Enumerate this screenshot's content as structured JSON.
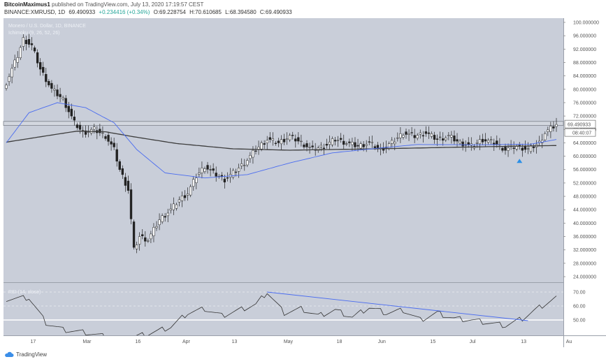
{
  "header": {
    "author": "BitcoinMaximus1",
    "published_text": "published on TradingView.com, July 13, 2020 17:19:57 CEST",
    "symbol": "BINANCE:XMRUSD, 1D",
    "last": "69.490933",
    "change": "+0.234416 (+0.34%)",
    "o": "O:69.228754",
    "h": "H:70.610685",
    "l": "L:68.394580",
    "c": "C:69.490933"
  },
  "chart_data": {
    "type": "candlestick",
    "title": "Monero / U.S. Dollar, 1D, BINANCE",
    "indicator_label": "Ichimoku (9, 26, 52, 26)",
    "price_axis_ticks": [
      "100.000000",
      "96.000000",
      "92.000000",
      "88.000000",
      "84.000000",
      "80.000000",
      "76.000000",
      "72.000000",
      "68.000000",
      "64.000000",
      "60.000000",
      "56.000000",
      "52.000000",
      "48.000000",
      "44.000000",
      "40.000000",
      "36.000000",
      "32.000000",
      "28.000000",
      "24.000000"
    ],
    "ylim": [
      24,
      100
    ],
    "last_price_label": "69.490933",
    "countdown_label": "08:40:07",
    "resistance_level": 69.8,
    "time_axis_labels": [
      "17",
      "Mar",
      "16",
      "Apr",
      "13",
      "May",
      "18",
      "Jun",
      "15",
      "Jul",
      "13",
      "Au"
    ],
    "close_anchors": [
      {
        "i": 0,
        "v": 82
      },
      {
        "i": 4,
        "v": 90
      },
      {
        "i": 6,
        "v": 95
      },
      {
        "i": 9,
        "v": 93
      },
      {
        "i": 12,
        "v": 86
      },
      {
        "i": 16,
        "v": 80
      },
      {
        "i": 20,
        "v": 77
      },
      {
        "i": 24,
        "v": 70
      },
      {
        "i": 27,
        "v": 67
      },
      {
        "i": 31,
        "v": 68
      },
      {
        "i": 35,
        "v": 66
      },
      {
        "i": 38,
        "v": 62
      },
      {
        "i": 40,
        "v": 56
      },
      {
        "i": 43,
        "v": 50
      },
      {
        "i": 45,
        "v": 32
      },
      {
        "i": 47,
        "v": 36
      },
      {
        "i": 50,
        "v": 35
      },
      {
        "i": 54,
        "v": 41
      },
      {
        "i": 58,
        "v": 44
      },
      {
        "i": 61,
        "v": 47
      },
      {
        "i": 64,
        "v": 49
      },
      {
        "i": 67,
        "v": 54
      },
      {
        "i": 70,
        "v": 57
      },
      {
        "i": 73,
        "v": 55
      },
      {
        "i": 77,
        "v": 53
      },
      {
        "i": 80,
        "v": 55
      },
      {
        "i": 84,
        "v": 58
      },
      {
        "i": 88,
        "v": 62
      },
      {
        "i": 92,
        "v": 65
      },
      {
        "i": 96,
        "v": 64
      },
      {
        "i": 100,
        "v": 66
      },
      {
        "i": 104,
        "v": 64
      },
      {
        "i": 108,
        "v": 62
      },
      {
        "i": 112,
        "v": 63
      },
      {
        "i": 116,
        "v": 65
      },
      {
        "i": 120,
        "v": 64
      },
      {
        "i": 124,
        "v": 63
      },
      {
        "i": 128,
        "v": 64
      },
      {
        "i": 132,
        "v": 62
      },
      {
        "i": 136,
        "v": 64
      },
      {
        "i": 140,
        "v": 67
      },
      {
        "i": 144,
        "v": 66
      },
      {
        "i": 148,
        "v": 67
      },
      {
        "i": 152,
        "v": 65
      },
      {
        "i": 156,
        "v": 66
      },
      {
        "i": 160,
        "v": 64
      },
      {
        "i": 164,
        "v": 63
      },
      {
        "i": 168,
        "v": 65
      },
      {
        "i": 172,
        "v": 64
      },
      {
        "i": 176,
        "v": 62
      },
      {
        "i": 180,
        "v": 63
      },
      {
        "i": 184,
        "v": 62
      },
      {
        "i": 188,
        "v": 64
      },
      {
        "i": 190,
        "v": 67
      },
      {
        "i": 194,
        "v": 69.5
      }
    ],
    "wick_range": 1.6,
    "slow_ma": [
      {
        "i": 0,
        "v": 64.2
      },
      {
        "i": 15,
        "v": 66.2
      },
      {
        "i": 25,
        "v": 67.5
      },
      {
        "i": 35,
        "v": 67.3
      },
      {
        "i": 45,
        "v": 65.8
      },
      {
        "i": 60,
        "v": 63.8
      },
      {
        "i": 80,
        "v": 62.2
      },
      {
        "i": 100,
        "v": 61.8
      },
      {
        "i": 130,
        "v": 62.2
      },
      {
        "i": 160,
        "v": 62.7
      },
      {
        "i": 194,
        "v": 63.2
      }
    ],
    "fast_ma": [
      {
        "i": 0,
        "v": 64
      },
      {
        "i": 8,
        "v": 73
      },
      {
        "i": 18,
        "v": 76
      },
      {
        "i": 28,
        "v": 74.5
      },
      {
        "i": 38,
        "v": 70
      },
      {
        "i": 46,
        "v": 62
      },
      {
        "i": 56,
        "v": 55
      },
      {
        "i": 70,
        "v": 53.5
      },
      {
        "i": 85,
        "v": 54.5
      },
      {
        "i": 100,
        "v": 58
      },
      {
        "i": 115,
        "v": 61
      },
      {
        "i": 130,
        "v": 62.3
      },
      {
        "i": 145,
        "v": 63.5
      },
      {
        "i": 165,
        "v": 63.4
      },
      {
        "i": 185,
        "v": 63.6
      },
      {
        "i": 194,
        "v": 65
      }
    ],
    "rsi": {
      "label": "RSI (14, close)",
      "levels": [
        "70.00",
        "60.00",
        "50.00"
      ],
      "ylim": [
        45,
        72
      ],
      "values": [
        {
          "i": 0,
          "v": 65
        },
        {
          "i": 8,
          "v": 66
        },
        {
          "i": 14,
          "v": 48
        },
        {
          "i": 20,
          "v": 43
        },
        {
          "i": 28,
          "v": 41
        },
        {
          "i": 40,
          "v": 36
        },
        {
          "i": 50,
          "v": 40
        },
        {
          "i": 58,
          "v": 45
        },
        {
          "i": 64,
          "v": 55
        },
        {
          "i": 70,
          "v": 58
        },
        {
          "i": 76,
          "v": 53
        },
        {
          "i": 82,
          "v": 57
        },
        {
          "i": 88,
          "v": 61
        },
        {
          "i": 92,
          "v": 70
        },
        {
          "i": 98,
          "v": 55
        },
        {
          "i": 104,
          "v": 58
        },
        {
          "i": 110,
          "v": 53
        },
        {
          "i": 116,
          "v": 57
        },
        {
          "i": 122,
          "v": 52
        },
        {
          "i": 128,
          "v": 59
        },
        {
          "i": 134,
          "v": 55
        },
        {
          "i": 140,
          "v": 57
        },
        {
          "i": 146,
          "v": 50
        },
        {
          "i": 152,
          "v": 55
        },
        {
          "i": 158,
          "v": 51
        },
        {
          "i": 164,
          "v": 50
        },
        {
          "i": 170,
          "v": 48
        },
        {
          "i": 176,
          "v": 46
        },
        {
          "i": 182,
          "v": 51
        },
        {
          "i": 188,
          "v": 59
        },
        {
          "i": 194,
          "v": 66
        }
      ],
      "trendline": [
        {
          "i": 92,
          "v": 70
        },
        {
          "i": 184,
          "v": 49.5
        }
      ]
    },
    "grid": false,
    "legend": "top-left"
  },
  "colors": {
    "plot_bg": "#c9ced9",
    "price_axis_bg": "#ffffff",
    "fast_ma": "#4a6cf0",
    "slow_ma": "#3d3d3d",
    "candle": "#222222",
    "rsi_line": "#333333",
    "rsi_trend": "#4a6cf0",
    "marker": "#2b8fe6",
    "resistance_fill": "#d3d7df",
    "last_price_label_bg": "#ffffff"
  },
  "footer": {
    "brand": "TradingView"
  }
}
